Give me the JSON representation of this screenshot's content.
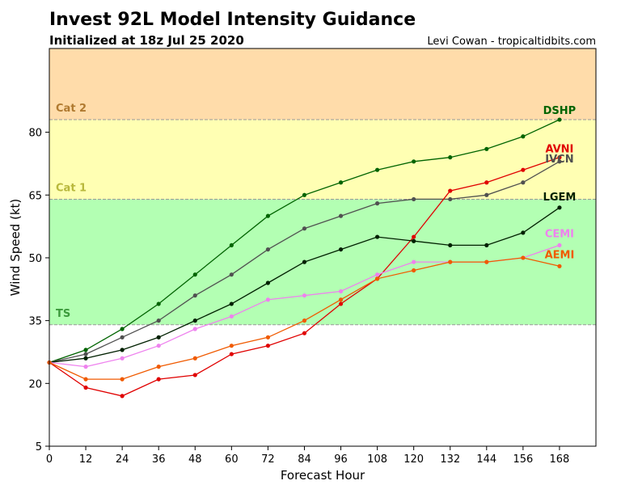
{
  "header": {
    "title": "Invest 92L Model Intensity Guidance",
    "subtitle": "Initialized at 18z Jul 25 2020",
    "credit": "Levi Cowan - tropicaltidbits.com"
  },
  "chart_data": {
    "type": "line",
    "title": "Invest 92L Model Intensity Guidance",
    "xlabel": "Forecast Hour",
    "ylabel": "Wind Speed (kt)",
    "xlim": [
      0,
      180
    ],
    "ylim": [
      5,
      100
    ],
    "x_ticks": [
      0,
      12,
      24,
      36,
      48,
      60,
      72,
      84,
      96,
      108,
      120,
      132,
      144,
      156,
      168
    ],
    "y_ticks": [
      5,
      20,
      35,
      50,
      65,
      80
    ],
    "grid": false,
    "bands": [
      {
        "label": "TS",
        "from": 34,
        "to": 64,
        "color": "#b3ffb3",
        "label_color": "#3c9a3c"
      },
      {
        "label": "Cat 1",
        "from": 64,
        "to": 83,
        "color": "#ffffb3",
        "label_color": "#b8b83c"
      },
      {
        "label": "Cat 2",
        "from": 83,
        "to": 100,
        "color": "#ffdcaa",
        "label_color": "#b07a30"
      }
    ],
    "series": [
      {
        "name": "DSHP",
        "color": "#006400",
        "label_color": "#006400",
        "x": [
          0,
          12,
          24,
          36,
          48,
          60,
          72,
          84,
          96,
          108,
          120,
          132,
          144,
          156,
          168
        ],
        "values": [
          25,
          28,
          33,
          39,
          46,
          53,
          60,
          65,
          68,
          71,
          73,
          74,
          76,
          79,
          83
        ]
      },
      {
        "name": "IVCN",
        "color": "#505050",
        "label_color": "#505050",
        "x": [
          0,
          12,
          24,
          36,
          48,
          60,
          72,
          84,
          96,
          108,
          120,
          132,
          144,
          156,
          168
        ],
        "values": [
          25,
          27,
          31,
          35,
          41,
          46,
          52,
          57,
          60,
          63,
          64,
          64,
          65,
          68,
          73
        ]
      },
      {
        "name": "AVNI",
        "color": "#e00000",
        "label_color": "#e00000",
        "x": [
          0,
          12,
          24,
          36,
          48,
          60,
          72,
          84,
          96,
          108,
          120,
          132,
          144,
          156,
          168
        ],
        "values": [
          25,
          19,
          17,
          21,
          22,
          27,
          29,
          32,
          39,
          45,
          55,
          66,
          68,
          71,
          74
        ]
      },
      {
        "name": "LGEM",
        "color": "#002000",
        "label_color": "#002000",
        "x": [
          0,
          12,
          24,
          36,
          48,
          60,
          72,
          84,
          96,
          108,
          120,
          132,
          144,
          156,
          168
        ],
        "values": [
          25,
          26,
          28,
          31,
          35,
          39,
          44,
          49,
          52,
          55,
          54,
          53,
          53,
          56,
          62
        ]
      },
      {
        "name": "CEMI",
        "color": "#ee82ee",
        "label_color": "#ee82ee",
        "x": [
          0,
          12,
          24,
          36,
          48,
          60,
          72,
          84,
          96,
          108,
          120,
          132,
          144,
          156,
          168
        ],
        "values": [
          25,
          24,
          26,
          29,
          33,
          36,
          40,
          41,
          42,
          46,
          49,
          49,
          49,
          50,
          53
        ]
      },
      {
        "name": "AEMI",
        "color": "#f05a00",
        "label_color": "#f05a00",
        "x": [
          0,
          12,
          24,
          36,
          48,
          60,
          72,
          84,
          96,
          108,
          120,
          132,
          144,
          156,
          168
        ],
        "values": [
          25,
          21,
          21,
          24,
          26,
          29,
          31,
          35,
          40,
          45,
          47,
          49,
          49,
          50,
          48
        ]
      }
    ]
  }
}
